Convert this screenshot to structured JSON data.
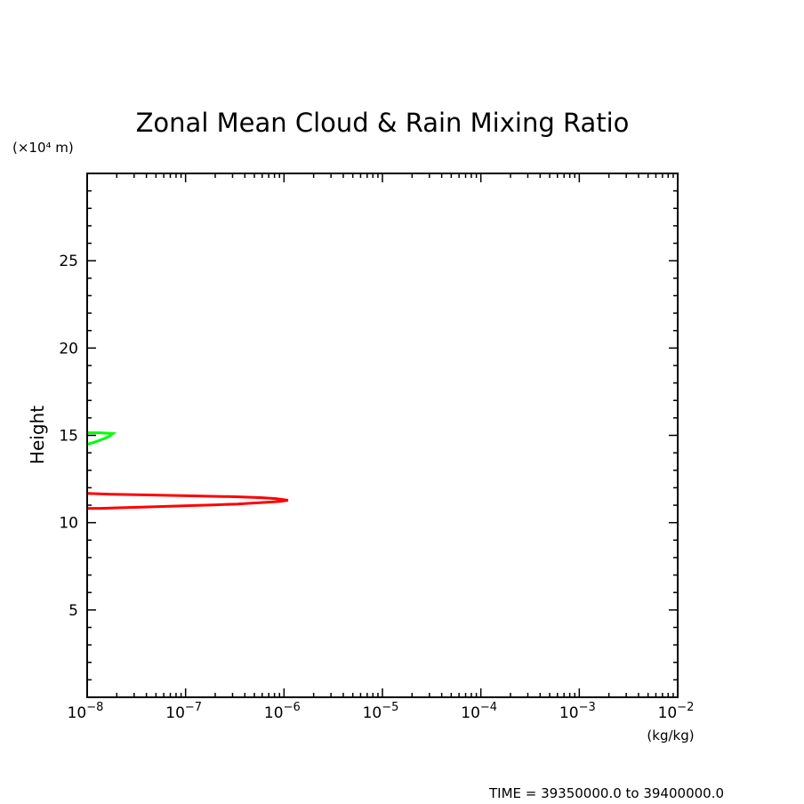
{
  "chart_data": {
    "type": "line",
    "title": "Zonal Mean Cloud & Rain Mixing Ratio",
    "xlabel": "(kg/kg)",
    "ylabel": "Height",
    "yunit": "(×10⁴ m)",
    "xscale": "log",
    "xlim": [
      1e-08,
      0.01
    ],
    "ylim": [
      0,
      30
    ],
    "xticks": [
      1e-08,
      1e-07,
      1e-06,
      1e-05,
      0.0001,
      0.001,
      0.01
    ],
    "xtick_labels": [
      {
        "base": "10",
        "exp": "−8"
      },
      {
        "base": "10",
        "exp": "−7"
      },
      {
        "base": "10",
        "exp": "−6"
      },
      {
        "base": "10",
        "exp": "−5"
      },
      {
        "base": "10",
        "exp": "−4"
      },
      {
        "base": "10",
        "exp": "−3"
      },
      {
        "base": "10",
        "exp": "−2"
      }
    ],
    "yticks": [
      5,
      10,
      15,
      20,
      25
    ],
    "ytick_labels": [
      "5",
      "10",
      "15",
      "20",
      "25"
    ],
    "grid": false,
    "series": [
      {
        "color": "#ff0000",
        "points": [
          [
            1e-08,
            11.68
          ],
          [
            1.75e-08,
            11.63
          ],
          [
            4.77e-08,
            11.58
          ],
          [
            1.27e-07,
            11.53
          ],
          [
            3.43e-07,
            11.48
          ],
          [
            6e-07,
            11.43
          ],
          [
            8.2e-07,
            11.38
          ],
          [
            1.1e-06,
            11.28
          ],
          [
            9.1e-07,
            11.22
          ],
          [
            6.7e-07,
            11.17
          ],
          [
            4.7e-07,
            11.12
          ],
          [
            3.37e-07,
            11.07
          ],
          [
            2.04e-07,
            11.02
          ],
          [
            1.03e-07,
            10.97
          ],
          [
            5.3e-08,
            10.92
          ],
          [
            2.66e-08,
            10.87
          ],
          [
            1.37e-08,
            10.82
          ],
          [
            1e-08,
            10.82
          ]
        ]
      },
      {
        "color": "#00ff00",
        "points": [
          [
            1e-08,
            15.15
          ],
          [
            1.34e-08,
            15.15
          ],
          [
            1.83e-08,
            15.1
          ],
          [
            1.68e-08,
            14.95
          ],
          [
            1.55e-08,
            14.85
          ],
          [
            1.37e-08,
            14.74
          ],
          [
            1.23e-08,
            14.64
          ],
          [
            1.09e-08,
            14.54
          ],
          [
            1e-08,
            14.49
          ]
        ]
      }
    ]
  },
  "footer": {
    "time_label": "TIME = 39350000.0 to 39400000.0"
  }
}
